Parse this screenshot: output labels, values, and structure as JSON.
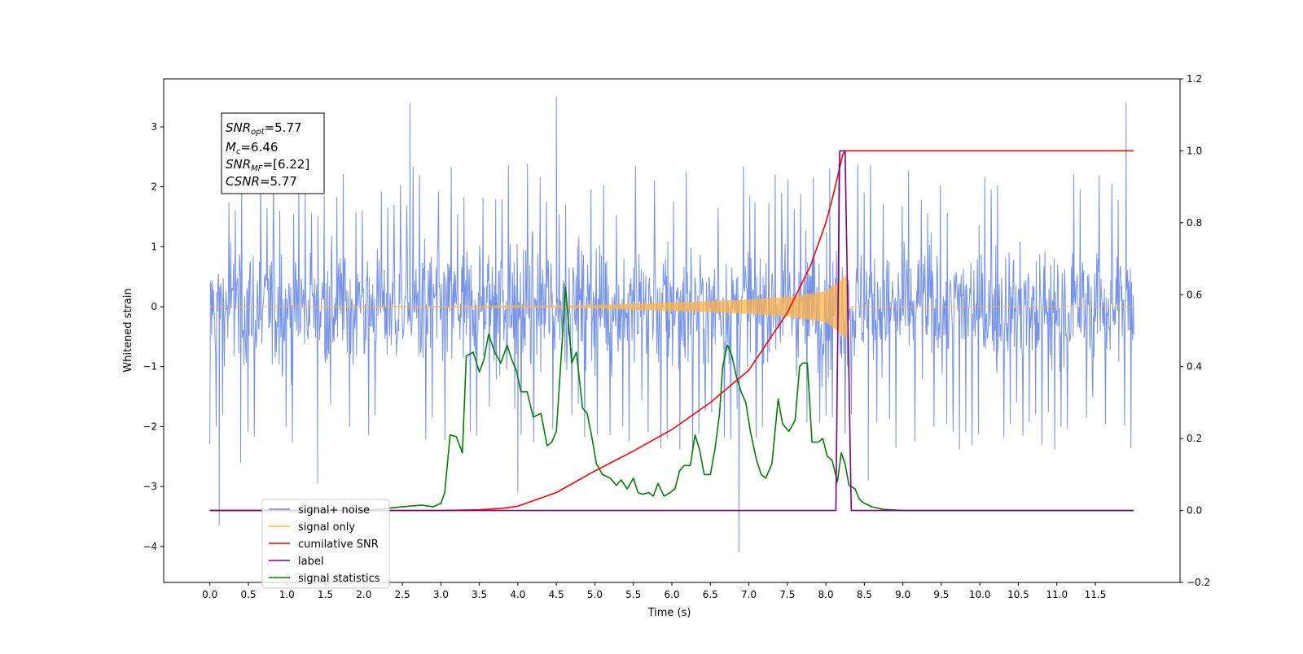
{
  "chart_data": {
    "type": "line",
    "xlabel": "Time (s)",
    "ylabel_left": "Whitened strain",
    "ylabel_right": "",
    "xlim": [
      -0.6,
      12.6
    ],
    "ylim_left": [
      -4.6,
      3.8
    ],
    "ylim_right": [
      -0.2,
      1.2
    ],
    "x_ticks": [
      "0.0",
      "0.5",
      "1.0",
      "1.5",
      "2.0",
      "2.5",
      "3.0",
      "3.5",
      "4.0",
      "4.5",
      "5.0",
      "5.5",
      "6.0",
      "6.5",
      "7.0",
      "7.5",
      "8.0",
      "8.5",
      "9.0",
      "9.5",
      "10.0",
      "10.5",
      "11.0",
      "11.5"
    ],
    "y_ticks_left": [
      "3",
      "2",
      "1",
      "0",
      "−1",
      "−2",
      "−3",
      "−4"
    ],
    "y_ticks_right": [
      "1.2",
      "1.0",
      "0.8",
      "0.6",
      "0.4",
      "0.2",
      "0.0",
      "−0.2"
    ],
    "annotation": {
      "snr_opt": {
        "base": "SNR",
        "sub": "opt",
        "value": "=5.77"
      },
      "mc": {
        "base": "M",
        "sub": "c",
        "value": "=6.46"
      },
      "snr_mf": {
        "base": "SNR",
        "sub": "MF",
        "value": "=[6.22]"
      },
      "csnr": {
        "base": "CSNR",
        "value": "=5.77"
      }
    },
    "legend": {
      "placement": "lower-left",
      "entries": [
        {
          "label": "signal+ noise",
          "color": "#6f8de6"
        },
        {
          "label": "signal only",
          "color": "#ffb347"
        },
        {
          "label": "cumilative SNR",
          "color": "#ff0000"
        },
        {
          "label": "label",
          "color": "#800080"
        },
        {
          "label": "signal statistics",
          "color": "#008000"
        }
      ]
    },
    "series": [
      {
        "name": "signal+ noise",
        "axis": "left",
        "color": "#6f8de6",
        "envelope": {
          "x_start": 0.0,
          "x_end": 12.0,
          "typical_max": 1.5,
          "typical_min": -1.6,
          "outliers": [
            [
              0.12,
              -3.65
            ],
            [
              0.4,
              -2.6
            ],
            [
              1.4,
              -2.95
            ],
            [
              2.6,
              3.4
            ],
            [
              4.0,
              -3.1
            ],
            [
              4.5,
              3.5
            ],
            [
              6.87,
              -4.1
            ],
            [
              11.9,
              3.4
            ],
            [
              8.05,
              2.3
            ],
            [
              8.55,
              -2.9
            ]
          ]
        }
      },
      {
        "name": "signal only",
        "axis": "left",
        "color": "#ffb347",
        "chirp_amplitude": {
          "x": [
            0.0,
            3.0,
            4.0,
            5.0,
            6.0,
            7.0,
            7.5,
            8.0,
            8.2,
            8.27,
            8.3,
            12.0
          ],
          "amp": [
            0.0,
            0.005,
            0.01,
            0.03,
            0.07,
            0.12,
            0.16,
            0.26,
            0.45,
            0.55,
            0.0,
            0.0
          ]
        }
      },
      {
        "name": "cumilative SNR",
        "axis": "right",
        "color": "#ff0000",
        "x": [
          0.0,
          3.0,
          3.5,
          3.8,
          4.0,
          4.5,
          5.0,
          5.5,
          6.0,
          6.5,
          7.0,
          7.5,
          7.8,
          8.0,
          8.1,
          8.22,
          8.25,
          12.0
        ],
        "y": [
          0.0,
          0.0,
          0.002,
          0.006,
          0.012,
          0.05,
          0.11,
          0.165,
          0.225,
          0.3,
          0.39,
          0.55,
          0.68,
          0.8,
          0.88,
          0.99,
          1.0,
          1.0
        ]
      },
      {
        "name": "label",
        "axis": "right",
        "color": "#800080",
        "x": [
          0.0,
          8.13,
          8.18,
          8.25,
          8.33,
          12.0
        ],
        "y": [
          0.0,
          0.0,
          1.0,
          1.0,
          0.0,
          0.0
        ]
      },
      {
        "name": "signal statistics",
        "axis": "right",
        "color": "#008000",
        "x": [
          0.0,
          2.0,
          2.5,
          2.75,
          2.9,
          3.0,
          3.05,
          3.12,
          3.2,
          3.28,
          3.33,
          3.42,
          3.5,
          3.56,
          3.62,
          3.7,
          3.78,
          3.86,
          3.92,
          3.98,
          4.04,
          4.12,
          4.2,
          4.3,
          4.38,
          4.44,
          4.5,
          4.56,
          4.62,
          4.7,
          4.76,
          4.84,
          4.9,
          4.96,
          5.02,
          5.1,
          5.2,
          5.28,
          5.34,
          5.42,
          5.5,
          5.56,
          5.62,
          5.7,
          5.76,
          5.82,
          5.9,
          5.98,
          6.04,
          6.1,
          6.16,
          6.24,
          6.3,
          6.36,
          6.42,
          6.5,
          6.56,
          6.62,
          6.66,
          6.72,
          6.78,
          6.84,
          6.9,
          6.96,
          7.02,
          7.1,
          7.16,
          7.22,
          7.3,
          7.38,
          7.44,
          7.52,
          7.6,
          7.66,
          7.7,
          7.76,
          7.82,
          7.9,
          7.96,
          8.02,
          8.08,
          8.15,
          8.2,
          8.25,
          8.3,
          8.38,
          8.44,
          8.5,
          8.6,
          8.75,
          9.0,
          9.3,
          9.5,
          12.0
        ],
        "y": [
          0.0,
          0.0,
          0.01,
          0.015,
          0.01,
          0.02,
          0.05,
          0.21,
          0.205,
          0.16,
          0.43,
          0.44,
          0.385,
          0.42,
          0.49,
          0.44,
          0.41,
          0.46,
          0.42,
          0.39,
          0.33,
          0.33,
          0.26,
          0.27,
          0.18,
          0.19,
          0.22,
          0.42,
          0.62,
          0.41,
          0.44,
          0.285,
          0.27,
          0.205,
          0.13,
          0.1,
          0.09,
          0.07,
          0.085,
          0.06,
          0.09,
          0.05,
          0.045,
          0.05,
          0.04,
          0.075,
          0.04,
          0.05,
          0.06,
          0.11,
          0.125,
          0.125,
          0.21,
          0.17,
          0.1,
          0.1,
          0.17,
          0.27,
          0.4,
          0.46,
          0.43,
          0.37,
          0.33,
          0.3,
          0.22,
          0.14,
          0.1,
          0.09,
          0.13,
          0.31,
          0.24,
          0.22,
          0.25,
          0.4,
          0.41,
          0.41,
          0.19,
          0.19,
          0.2,
          0.15,
          0.14,
          0.08,
          0.16,
          0.13,
          0.07,
          0.06,
          0.03,
          0.02,
          0.01,
          0.003,
          0.0,
          0.0,
          0.0,
          0.0
        ]
      }
    ]
  }
}
